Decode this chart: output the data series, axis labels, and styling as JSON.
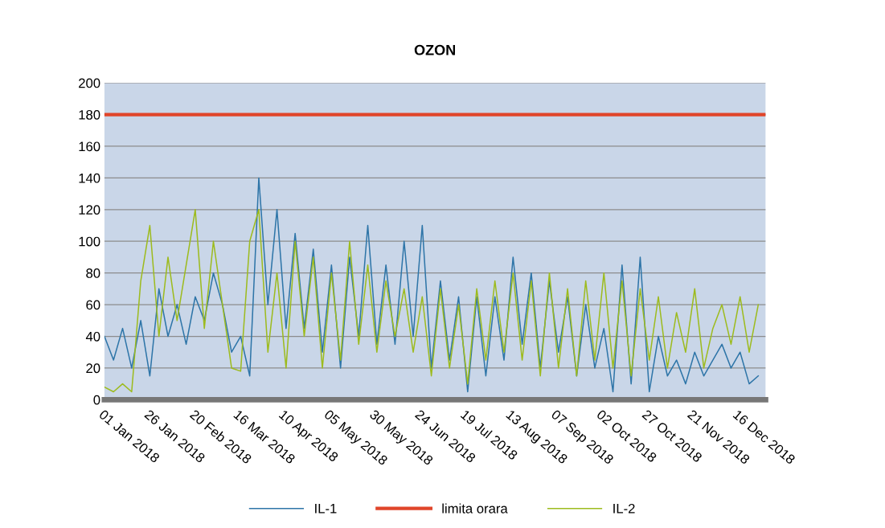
{
  "chart_data": {
    "type": "line",
    "title": "OZON",
    "x": [
      "2018-01-01",
      "2018-01-06",
      "2018-01-11",
      "2018-01-16",
      "2018-01-21",
      "2018-01-26",
      "2018-01-31",
      "2018-02-05",
      "2018-02-10",
      "2018-02-15",
      "2018-02-20",
      "2018-02-25",
      "2018-03-02",
      "2018-03-07",
      "2018-03-12",
      "2018-03-17",
      "2018-03-22",
      "2018-03-27",
      "2018-04-01",
      "2018-04-06",
      "2018-04-11",
      "2018-04-16",
      "2018-04-21",
      "2018-04-26",
      "2018-05-01",
      "2018-05-06",
      "2018-05-11",
      "2018-05-16",
      "2018-05-21",
      "2018-05-26",
      "2018-05-31",
      "2018-06-05",
      "2018-06-10",
      "2018-06-15",
      "2018-06-20",
      "2018-06-25",
      "2018-06-30",
      "2018-07-05",
      "2018-07-10",
      "2018-07-15",
      "2018-07-20",
      "2018-07-25",
      "2018-07-30",
      "2018-08-04",
      "2018-08-09",
      "2018-08-14",
      "2018-08-19",
      "2018-08-24",
      "2018-08-29",
      "2018-09-03",
      "2018-09-08",
      "2018-09-13",
      "2018-09-18",
      "2018-09-23",
      "2018-09-28",
      "2018-10-03",
      "2018-10-08",
      "2018-10-13",
      "2018-10-18",
      "2018-10-23",
      "2018-10-28",
      "2018-11-02",
      "2018-11-07",
      "2018-11-12",
      "2018-11-17",
      "2018-11-22",
      "2018-11-27",
      "2018-12-02",
      "2018-12-07",
      "2018-12-12",
      "2018-12-17",
      "2018-12-22",
      "2018-12-27"
    ],
    "series": [
      {
        "name": "IL-1",
        "color": "#2e75a8",
        "values": [
          40,
          25,
          45,
          20,
          50,
          15,
          70,
          40,
          60,
          35,
          65,
          50,
          80,
          60,
          30,
          40,
          15,
          140,
          60,
          120,
          45,
          105,
          45,
          95,
          30,
          85,
          20,
          90,
          40,
          110,
          35,
          85,
          35,
          100,
          40,
          110,
          20,
          75,
          25,
          65,
          5,
          65,
          15,
          65,
          25,
          90,
          35,
          80,
          20,
          75,
          30,
          65,
          15,
          60,
          20,
          45,
          5,
          85,
          10,
          90,
          5,
          40,
          15,
          25,
          10,
          30,
          15,
          25,
          35,
          20,
          30,
          10,
          15
        ]
      },
      {
        "name": "limita orara",
        "color": "#e0452a",
        "x": [
          "2018-01-01",
          "2018-12-31"
        ],
        "values": [
          180,
          180
        ]
      },
      {
        "name": "IL-2",
        "color": "#9dbb1e",
        "values": [
          8,
          5,
          10,
          5,
          75,
          110,
          40,
          90,
          50,
          85,
          120,
          45,
          100,
          60,
          20,
          18,
          100,
          120,
          30,
          80,
          20,
          100,
          40,
          90,
          20,
          80,
          25,
          100,
          35,
          85,
          30,
          75,
          40,
          70,
          30,
          65,
          15,
          70,
          20,
          60,
          10,
          70,
          25,
          75,
          30,
          80,
          25,
          75,
          15,
          80,
          20,
          70,
          15,
          75,
          25,
          80,
          20,
          75,
          15,
          70,
          25,
          65,
          20,
          55,
          30,
          70,
          20,
          45,
          60,
          35,
          65,
          30,
          60
        ]
      }
    ],
    "xlim": [
      "2018-01-01",
      "2018-12-31"
    ],
    "xticks": [
      {
        "value": "2018-01-01",
        "label": "01 Jan 2018"
      },
      {
        "value": "2018-01-26",
        "label": "26 Jan 2018"
      },
      {
        "value": "2018-02-20",
        "label": "20 Feb 2018"
      },
      {
        "value": "2018-03-16",
        "label": "16 Mar 2018"
      },
      {
        "value": "2018-04-10",
        "label": "10 Apr 2018"
      },
      {
        "value": "2018-05-05",
        "label": "05 May 2018"
      },
      {
        "value": "2018-05-30",
        "label": "30 May 2018"
      },
      {
        "value": "2018-06-24",
        "label": "24 Jun 2018"
      },
      {
        "value": "2018-07-19",
        "label": "19 Jul 2018"
      },
      {
        "value": "2018-08-13",
        "label": "13 Aug 2018"
      },
      {
        "value": "2018-09-07",
        "label": "07 Sep 2018"
      },
      {
        "value": "2018-10-02",
        "label": "02 Oct 2018"
      },
      {
        "value": "2018-10-27",
        "label": "27 Oct 2018"
      },
      {
        "value": "2018-11-21",
        "label": "21 Nov 2018"
      },
      {
        "value": "2018-12-16",
        "label": "16 Dec 2018"
      }
    ],
    "ylim": [
      0,
      200
    ],
    "yticks": [
      0,
      20,
      40,
      60,
      80,
      100,
      120,
      140,
      160,
      180,
      200
    ],
    "grid": "y",
    "legend": "bottom"
  }
}
